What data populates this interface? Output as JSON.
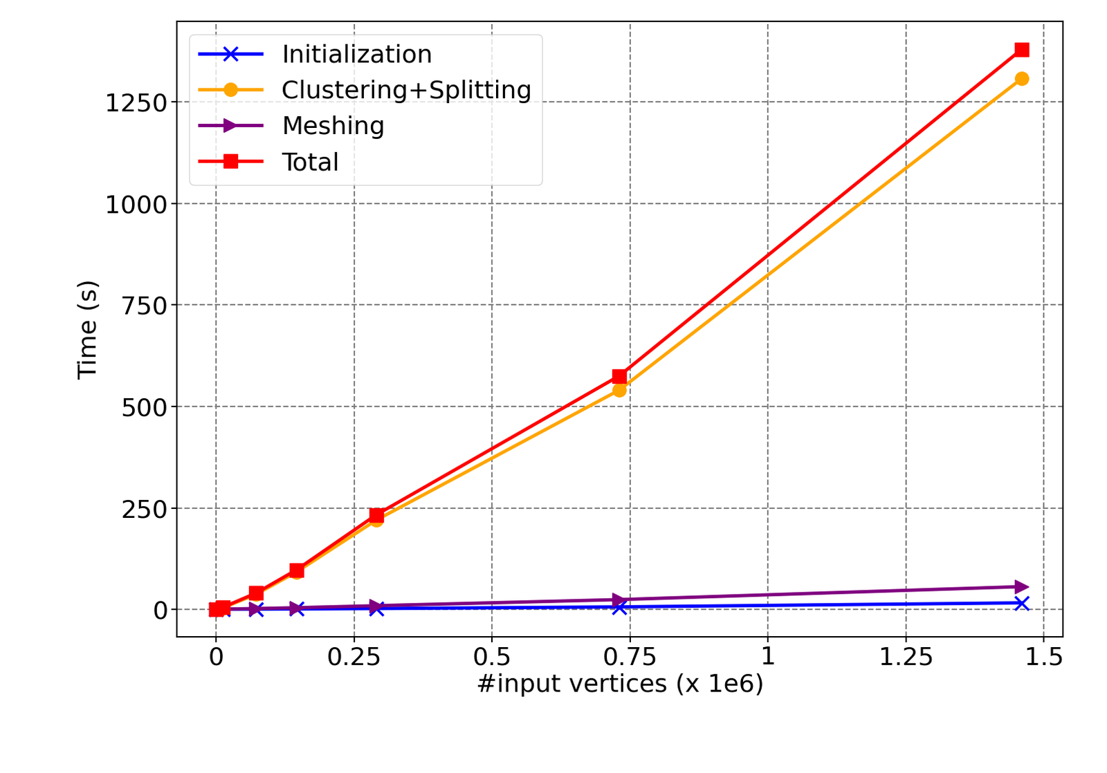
{
  "chart_data": {
    "type": "line",
    "x_label": "#input vertices (x 1e6)",
    "y_label": "Time (s)",
    "x": [
      0,
      0.012,
      0.072,
      0.145,
      0.29,
      0.73,
      1.46
    ],
    "series": [
      {
        "name": "Initialization",
        "color": "#0000ff",
        "marker": "x",
        "line_style": "solid",
        "values": [
          0,
          0.2,
          0.5,
          1,
          2,
          6,
          16
        ]
      },
      {
        "name": "Clustering+Splitting",
        "color": "#ffa500",
        "marker": "o",
        "line_style": "solid",
        "values": [
          0,
          4,
          37,
          92,
          220,
          540,
          1308
        ]
      },
      {
        "name": "Meshing",
        "color": "#800080",
        "marker": ">",
        "line_style": "solid",
        "values": [
          0,
          0.5,
          2,
          4,
          9,
          24,
          56
        ]
      },
      {
        "name": "Total",
        "color": "#ff0000",
        "marker": "s",
        "line_style": "solid",
        "values": [
          0,
          5,
          40,
          97,
          233,
          575,
          1380
        ]
      }
    ],
    "xlim": [
      -0.071,
      1.534
    ],
    "ylim": [
      -68,
      1448
    ],
    "xticks": [
      0,
      0.25,
      0.5,
      0.75,
      1,
      1.25,
      1.5
    ],
    "yticks": [
      0,
      250,
      500,
      750,
      1000,
      1250
    ],
    "grid": true,
    "legend": "upper left"
  }
}
